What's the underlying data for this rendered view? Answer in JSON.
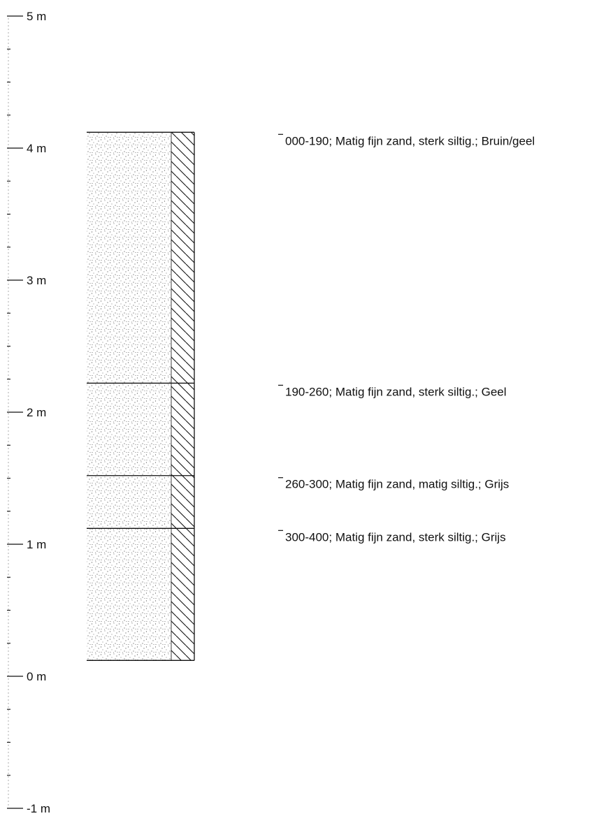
{
  "chart_data": {
    "type": "borehole-log",
    "depth_axis": {
      "unit": "m",
      "range": [
        -1,
        5
      ],
      "major_ticks": [
        {
          "value": 5,
          "label": "5 m"
        },
        {
          "value": 4,
          "label": "4 m"
        },
        {
          "value": 3,
          "label": "3 m"
        },
        {
          "value": 2,
          "label": "2 m"
        },
        {
          "value": 1,
          "label": "1 m"
        },
        {
          "value": 0,
          "label": "0 m"
        },
        {
          "value": -1,
          "label": "-1 m"
        }
      ],
      "minor_step": 0.25
    },
    "column": {
      "top": 4.12,
      "bottom": 0.12,
      "fill": "stippled sand",
      "side_pattern": "diagonal hatch"
    },
    "layers": [
      {
        "label": "000-190; Matig fijn zand, sterk siltig.; Bruin/geel",
        "top": 4.12,
        "bottom": 2.22
      },
      {
        "label": "190-260; Matig fijn zand, sterk siltig.; Geel",
        "top": 2.22,
        "bottom": 1.52
      },
      {
        "label": "260-300; Matig fijn zand, matig siltig.; Grijs",
        "top": 1.52,
        "bottom": 1.12
      },
      {
        "label": "300-400; Matig fijn zand, sterk siltig.; Grijs",
        "top": 1.12,
        "bottom": 0.12
      }
    ]
  },
  "colors": {
    "ink": "#111111",
    "stipple": "#555555"
  }
}
